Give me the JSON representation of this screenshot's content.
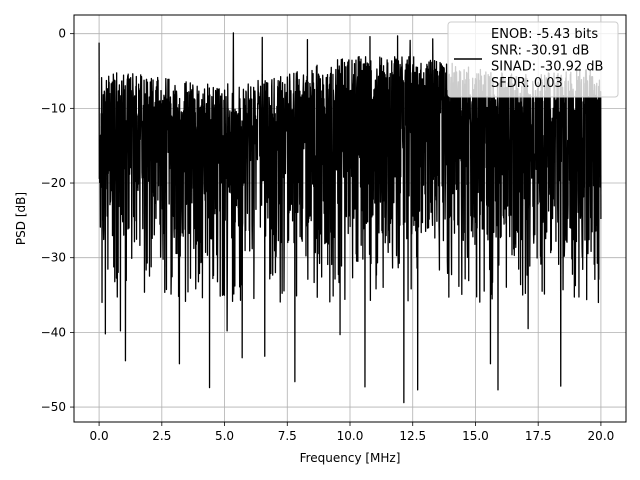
{
  "chart_data": {
    "type": "line",
    "title": "",
    "xlabel": "Frequency [MHz]",
    "ylabel": "PSD [dB]",
    "xlim": [
      -1.0,
      21.0
    ],
    "ylim": [
      -52.0,
      2.5
    ],
    "xticks": [
      0.0,
      2.5,
      5.0,
      7.5,
      10.0,
      12.5,
      15.0,
      17.5,
      20.0
    ],
    "xtick_labels": [
      "0.0",
      "2.5",
      "5.0",
      "7.5",
      "10.0",
      "12.5",
      "15.0",
      "17.5",
      "20.0"
    ],
    "yticks": [
      0,
      -10,
      -20,
      -30,
      -40,
      -50
    ],
    "ytick_labels": [
      "0",
      "−10",
      "−20",
      "−30",
      "−40",
      "−50"
    ],
    "grid": true,
    "legend_position": "top-right",
    "legend_lines": [
      "ENOB: -5.43 bits",
      "SNR: -30.91 dB",
      "SINAD: -30.92 dB",
      "SFDR: 0.03"
    ],
    "series": [
      {
        "color": "#000000",
        "x_range": [
          0.0,
          20.0
        ],
        "description_shape": "dense noise floor, upper envelope about -3 to -8 dB, typical band -10 to -28 dB",
        "spikes": [
          {
            "x": 0.0,
            "y": -1.2
          },
          {
            "x": 5.35,
            "y": 0.1
          },
          {
            "x": 6.5,
            "y": -0.5
          },
          {
            "x": 8.3,
            "y": -0.8
          },
          {
            "x": 10.8,
            "y": -0.4
          },
          {
            "x": 11.9,
            "y": -0.3
          },
          {
            "x": 12.4,
            "y": -0.9
          },
          {
            "x": 13.3,
            "y": -0.7
          }
        ],
        "dips": [
          {
            "x": 0.25,
            "y": -40.2
          },
          {
            "x": 0.85,
            "y": -39.8
          },
          {
            "x": 1.05,
            "y": -43.8
          },
          {
            "x": 3.2,
            "y": -44.2
          },
          {
            "x": 4.4,
            "y": -47.4
          },
          {
            "x": 5.1,
            "y": -39.8
          },
          {
            "x": 5.7,
            "y": -43.4
          },
          {
            "x": 6.6,
            "y": -43.2
          },
          {
            "x": 7.8,
            "y": -46.6
          },
          {
            "x": 9.6,
            "y": -40.3
          },
          {
            "x": 10.6,
            "y": -47.3
          },
          {
            "x": 12.15,
            "y": -49.4
          },
          {
            "x": 12.7,
            "y": -47.7
          },
          {
            "x": 13.3,
            "y": -44.6
          },
          {
            "x": 15.6,
            "y": -44.2
          },
          {
            "x": 15.9,
            "y": -47.7
          },
          {
            "x": 17.1,
            "y": -39.5
          },
          {
            "x": 18.4,
            "y": -47.2
          },
          {
            "x": 19.9,
            "y": -36.0
          }
        ]
      }
    ]
  }
}
